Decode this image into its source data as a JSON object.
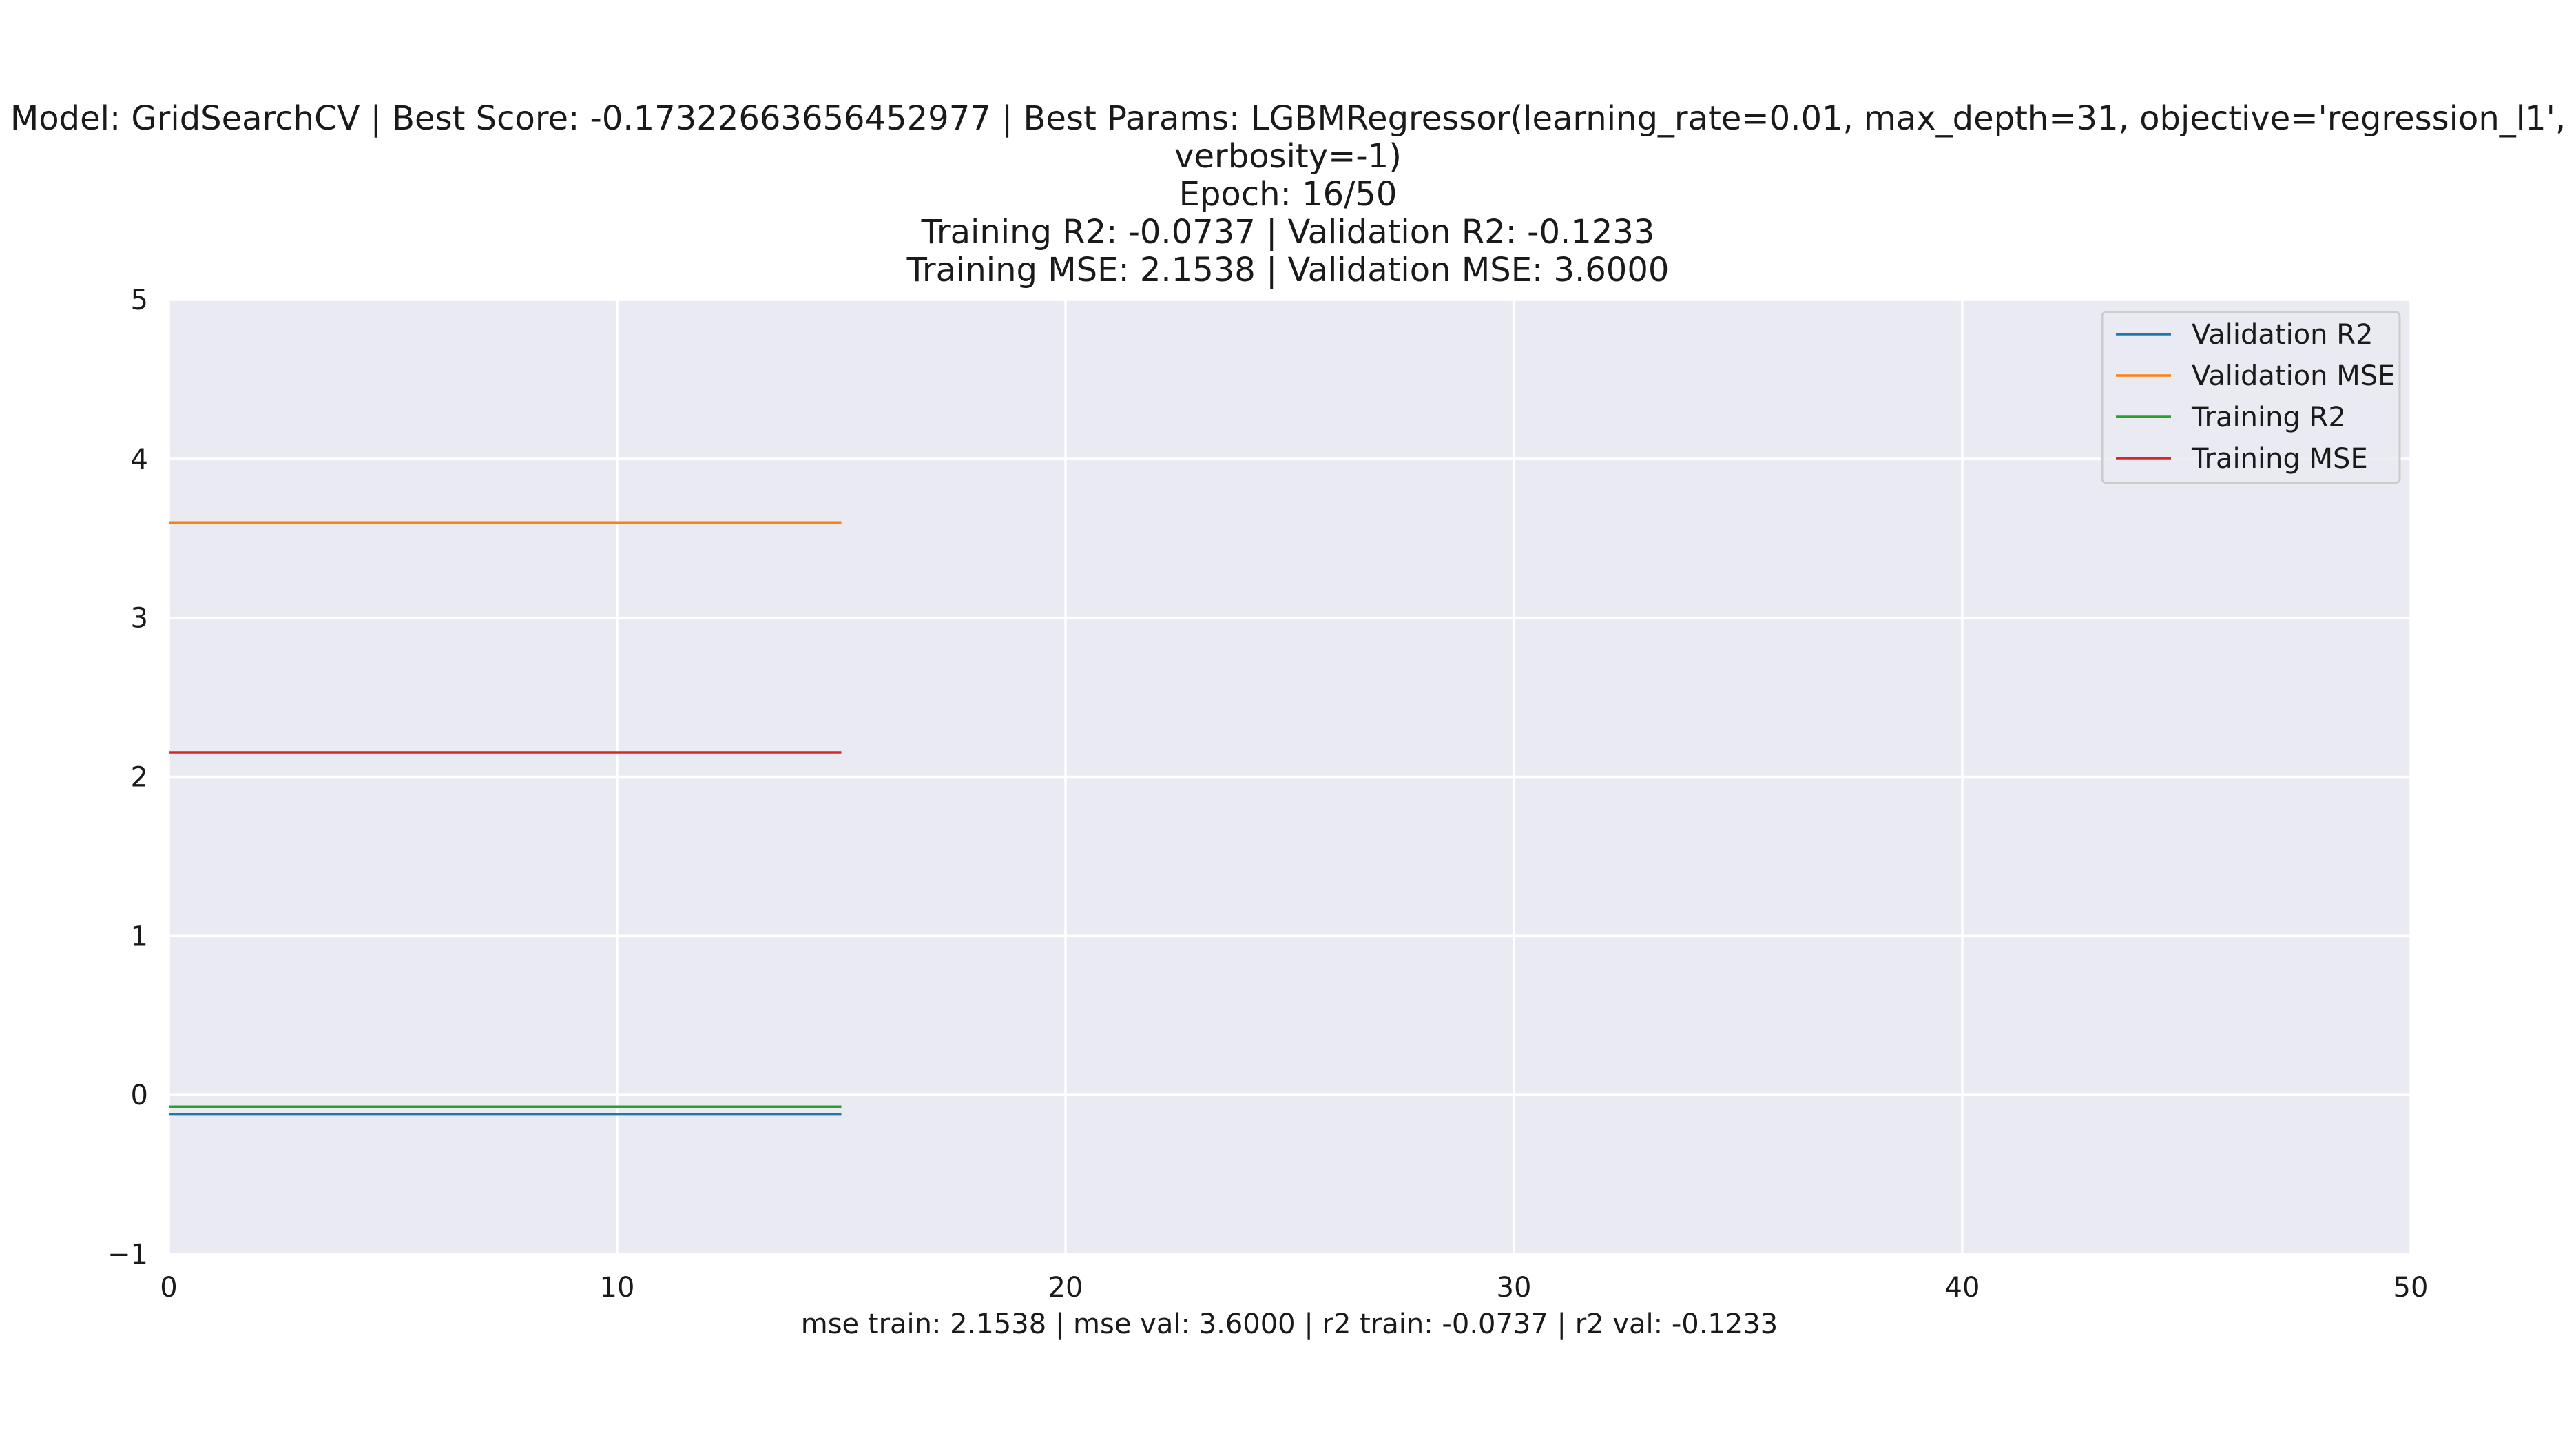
{
  "chart_data": {
    "type": "line",
    "title_lines": [
      "Model: GridSearchCV | Best Score: -0.17322663656452977 | Best Params: LGBMRegressor(learning_rate=0.01, max_depth=31, objective='regression_l1',",
      "verbosity=-1)",
      "Epoch: 16/50",
      "Training R2: -0.0737 | Validation R2: -0.1233",
      "Training MSE: 2.1538 | Validation MSE: 3.6000"
    ],
    "xlabel": "mse train: 2.1538 | mse val: 3.6000 | r2 train: -0.0737 | r2 val: -0.1233",
    "ylabel": "",
    "xlim": [
      0,
      50
    ],
    "ylim": [
      -1,
      5
    ],
    "xticks": [
      0,
      10,
      20,
      30,
      40,
      50
    ],
    "yticks": [
      -1,
      0,
      1,
      2,
      3,
      4,
      5
    ],
    "ytick_labels": [
      "−1",
      "0",
      "1",
      "2",
      "3",
      "4",
      "5"
    ],
    "grid": true,
    "legend_position": "top-right",
    "x": [
      0,
      1,
      2,
      3,
      4,
      5,
      6,
      7,
      8,
      9,
      10,
      11,
      12,
      13,
      14,
      15
    ],
    "series": [
      {
        "name": "Validation R2",
        "color": "#1f77b4",
        "values": [
          -0.1233,
          -0.1233,
          -0.1233,
          -0.1233,
          -0.1233,
          -0.1233,
          -0.1233,
          -0.1233,
          -0.1233,
          -0.1233,
          -0.1233,
          -0.1233,
          -0.1233,
          -0.1233,
          -0.1233,
          -0.1233
        ]
      },
      {
        "name": "Validation MSE",
        "color": "#ff7f0e",
        "values": [
          3.6,
          3.6,
          3.6,
          3.6,
          3.6,
          3.6,
          3.6,
          3.6,
          3.6,
          3.6,
          3.6,
          3.6,
          3.6,
          3.6,
          3.6,
          3.6
        ]
      },
      {
        "name": "Training R2",
        "color": "#2ca02c",
        "values": [
          -0.0737,
          -0.0737,
          -0.0737,
          -0.0737,
          -0.0737,
          -0.0737,
          -0.0737,
          -0.0737,
          -0.0737,
          -0.0737,
          -0.0737,
          -0.0737,
          -0.0737,
          -0.0737,
          -0.0737,
          -0.0737
        ]
      },
      {
        "name": "Training MSE",
        "color": "#d62728",
        "values": [
          2.1538,
          2.1538,
          2.1538,
          2.1538,
          2.1538,
          2.1538,
          2.1538,
          2.1538,
          2.1538,
          2.1538,
          2.1538,
          2.1538,
          2.1538,
          2.1538,
          2.1538,
          2.1538
        ]
      }
    ],
    "colors": {
      "plot_background": "#eaeaf2",
      "grid": "#ffffff",
      "legend_border": "#cccccc"
    }
  }
}
